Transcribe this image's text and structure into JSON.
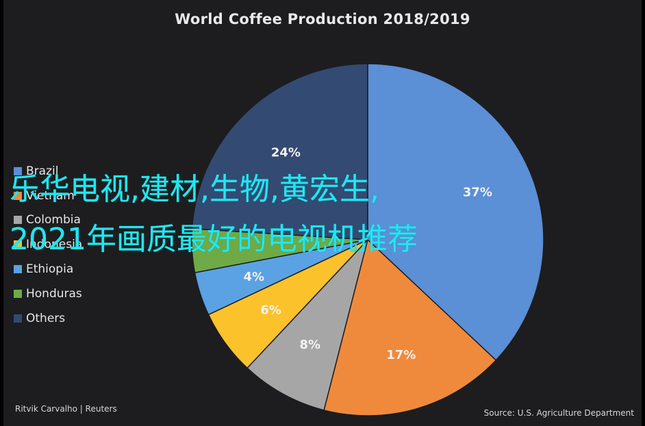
{
  "chart_data": {
    "type": "pie",
    "title": "World Coffee Production 2018/2019",
    "slices": [
      {
        "label": "Brazil",
        "value": 37,
        "data_label": "37%",
        "color": "#5b8fd6"
      },
      {
        "label": "Vietnam",
        "value": 17,
        "data_label": "17%",
        "color": "#ef8a3c"
      },
      {
        "label": "Colombia",
        "value": 8,
        "data_label": "8%",
        "color": "#a6a6a6"
      },
      {
        "label": "Indonesia",
        "value": 6,
        "data_label": "6%",
        "color": "#fbc22b"
      },
      {
        "label": "Ethiopia",
        "value": 4,
        "data_label": "4%",
        "color": "#5aa2e3"
      },
      {
        "label": "Honduras",
        "value": 4,
        "data_label": "",
        "color": "#6eaa46"
      },
      {
        "label": "Others",
        "value": 24,
        "data_label": "24%",
        "color": "#334a72"
      }
    ],
    "legend_position": "left"
  },
  "footer": {
    "credit": "Ritvik Carvalho | Reuters",
    "source": "Source: U.S. Agriculture Department"
  },
  "overlay": {
    "line1": "乐华电视,建材,生物,黄宏生,",
    "line2": "2021年画质最好的电视机推荐"
  }
}
